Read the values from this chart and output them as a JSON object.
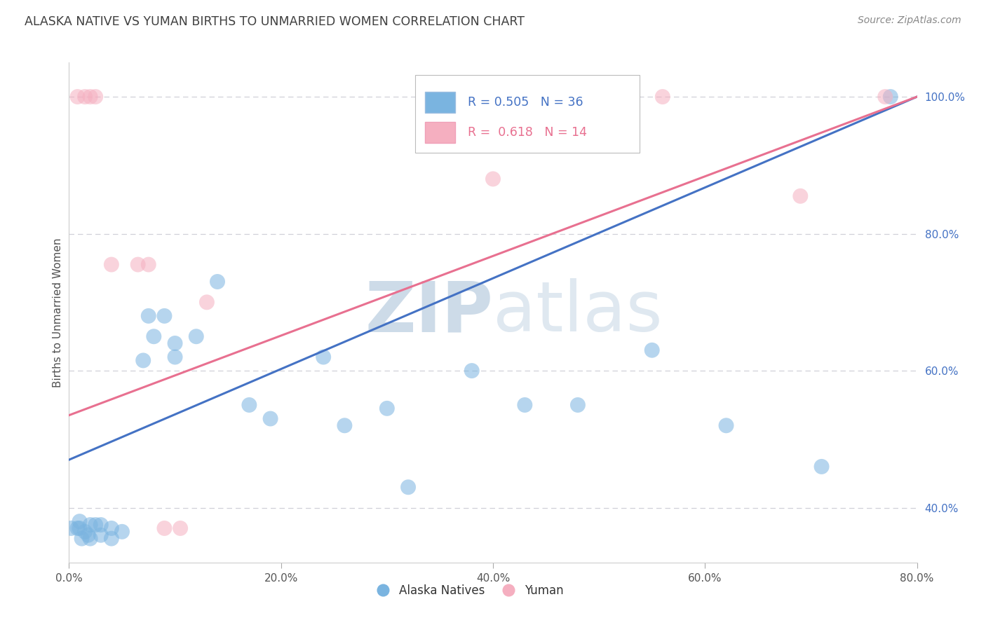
{
  "title": "ALASKA NATIVE VS YUMAN BIRTHS TO UNMARRIED WOMEN CORRELATION CHART",
  "source": "Source: ZipAtlas.com",
  "ylabel": "Births to Unmarried Women",
  "xlim": [
    0.0,
    0.8
  ],
  "ylim": [
    0.32,
    1.05
  ],
  "watermark_zip": "ZIP",
  "watermark_atlas": "atlas",
  "legend_blue_label": "Alaska Natives",
  "legend_pink_label": "Yuman",
  "r_blue": 0.505,
  "n_blue": 36,
  "r_pink": 0.618,
  "n_pink": 14,
  "blue_scatter_color": "#7ab4e0",
  "pink_scatter_color": "#f5afc0",
  "line_blue_color": "#4472c4",
  "line_pink_color": "#e87090",
  "background_color": "#ffffff",
  "grid_color": "#d0d0d8",
  "title_color": "#404040",
  "right_tick_color": "#4472c4",
  "x_tick_vals": [
    0.0,
    0.2,
    0.4,
    0.6,
    0.8
  ],
  "x_tick_labels": [
    "0.0%",
    "20.0%",
    "40.0%",
    "60.0%",
    "80.0%"
  ],
  "y_tick_vals": [
    0.4,
    0.6,
    0.8,
    1.0
  ],
  "y_tick_labels": [
    "40.0%",
    "60.0%",
    "80.0%",
    "100.0%"
  ],
  "alaska_x": [
    0.002,
    0.008,
    0.01,
    0.01,
    0.012,
    0.015,
    0.018,
    0.02,
    0.02,
    0.025,
    0.03,
    0.03,
    0.04,
    0.04,
    0.05,
    0.07,
    0.075,
    0.08,
    0.09,
    0.1,
    0.1,
    0.12,
    0.14,
    0.17,
    0.19,
    0.24,
    0.26,
    0.3,
    0.32,
    0.38,
    0.43,
    0.48,
    0.55,
    0.62,
    0.71,
    0.775
  ],
  "alaska_y": [
    0.37,
    0.37,
    0.37,
    0.38,
    0.355,
    0.365,
    0.36,
    0.375,
    0.355,
    0.375,
    0.36,
    0.375,
    0.355,
    0.37,
    0.365,
    0.615,
    0.68,
    0.65,
    0.68,
    0.64,
    0.62,
    0.65,
    0.73,
    0.55,
    0.53,
    0.62,
    0.52,
    0.545,
    0.43,
    0.6,
    0.55,
    0.55,
    0.63,
    0.52,
    0.46,
    1.0
  ],
  "yuman_x": [
    0.008,
    0.015,
    0.02,
    0.025,
    0.04,
    0.065,
    0.075,
    0.09,
    0.105,
    0.13,
    0.4,
    0.56,
    0.69,
    0.77
  ],
  "yuman_y": [
    1.0,
    1.0,
    1.0,
    1.0,
    0.755,
    0.755,
    0.755,
    0.37,
    0.37,
    0.7,
    0.88,
    1.0,
    0.855,
    1.0
  ],
  "blue_line_x0": 0.0,
  "blue_line_y0": 0.47,
  "blue_line_x1": 0.8,
  "blue_line_y1": 1.0,
  "pink_line_x0": 0.0,
  "pink_line_y0": 0.535,
  "pink_line_x1": 0.8,
  "pink_line_y1": 1.0
}
